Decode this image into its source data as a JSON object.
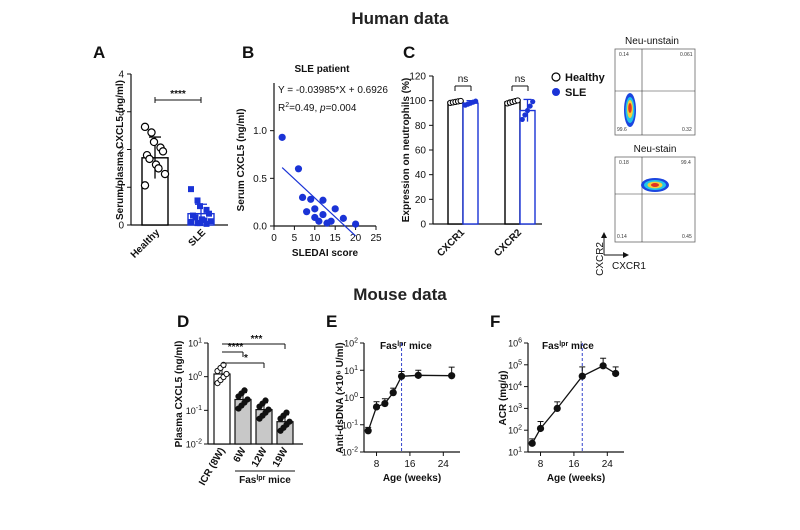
{
  "figure": {
    "human_title": "Human data",
    "mouse_title": "Mouse data"
  },
  "colors": {
    "healthy": "#000000",
    "sle": "#1a33d6",
    "fit": "#1a33d6",
    "dashed": "#3344cc"
  },
  "chart_data": [
    {
      "panel": "A",
      "type": "bar",
      "ylabel": "Serum/plasma CXCL5 (ng/ml)",
      "categories": [
        "Healthy",
        "SLE"
      ],
      "values": [
        1.78,
        0.3
      ],
      "errors": [
        0.55,
        0.25
      ],
      "ylim": [
        0,
        4
      ],
      "yticks": [
        "0",
        "1",
        "2",
        "3",
        "4"
      ],
      "points": [
        [
          2.6,
          2.45,
          2.2,
          2.05,
          1.95,
          1.85,
          1.75,
          1.6,
          1.5,
          1.35,
          1.05
        ],
        [
          0.95,
          0.65,
          0.5,
          0.4,
          0.3,
          0.25,
          0.2,
          0.15,
          0.12,
          0.1,
          0.08,
          0.05,
          0.05,
          0.03
        ]
      ],
      "significance": "****"
    },
    {
      "panel": "B",
      "type": "scatter",
      "title": "SLE patient",
      "equation": "Y = -0.03985*X + 0.6926",
      "stats_r2": "R",
      "stats_sup": "2",
      "stats_rest": "=0.49, ",
      "stats_p": "p",
      "stats_pval": "=0.004",
      "xlabel": "SLEDAI score",
      "ylabel": "Serum CXCL5 (ng/ml)",
      "xlim": [
        0,
        25
      ],
      "ylim": [
        0,
        1.5
      ],
      "xticks": [
        "0",
        "5",
        "10",
        "15",
        "20",
        "25"
      ],
      "yticks": [
        "0.0",
        "0.5",
        "1.0"
      ],
      "x": [
        2,
        6,
        7,
        8,
        9,
        10,
        10,
        11,
        12,
        12,
        13,
        14,
        15,
        17,
        20
      ],
      "y": [
        0.93,
        0.6,
        0.3,
        0.15,
        0.28,
        0.09,
        0.18,
        0.05,
        0.12,
        0.27,
        0.03,
        0.05,
        0.18,
        0.08,
        0.02
      ],
      "fit": {
        "slope": -0.03985,
        "intercept": 0.6926,
        "x_range": [
          2,
          20
        ]
      }
    },
    {
      "panel": "C",
      "type": "bar",
      "ylabel": "Expression on neutrophils (%)",
      "categories": [
        "CXCR1",
        "CXCR2"
      ],
      "series": [
        {
          "name": "Healthy",
          "values": [
            99,
            99
          ],
          "errors": [
            1,
            1.5
          ]
        },
        {
          "name": "SLE",
          "values": [
            98,
            92
          ],
          "errors": [
            2,
            9
          ]
        }
      ],
      "ylim": [
        0,
        120
      ],
      "yticks": [
        "0",
        "20",
        "40",
        "60",
        "80",
        "100",
        "120"
      ],
      "significance": [
        "ns",
        "ns"
      ],
      "legend_position": "top-right"
    },
    {
      "panel": "D",
      "type": "bar",
      "ylabel": "Plasma CXCL5 (ng/ml)",
      "categories": [
        "ICR (8W)",
        "6W",
        "12W",
        "19W"
      ],
      "group_label": "Fas",
      "group_label_sup": "lpr",
      "group_label_rest": " mice",
      "values": [
        1.2,
        0.21,
        0.105,
        0.046
      ],
      "yscale": "log",
      "ylim": [
        0.01,
        10
      ],
      "ytick_base": "10",
      "ytick_exps": [
        "1",
        "0",
        "-1",
        "-2"
      ],
      "significance": [
        "****",
        "*",
        "***"
      ]
    },
    {
      "panel": "E",
      "type": "line",
      "title": "Fas",
      "title_sup": "lpr",
      "title_rest": " mice",
      "xlabel": "Age (weeks)",
      "ylabel": "Anti-dsDNA (×10⁶ U/ml)",
      "x": [
        6,
        8,
        10,
        12,
        14,
        18,
        26
      ],
      "y": [
        0.06,
        0.45,
        0.6,
        1.5,
        6.0,
        6.5,
        6.3
      ],
      "yerr_high": [
        0.08,
        0.7,
        0.9,
        2.2,
        9.0,
        10.0,
        13.0
      ],
      "yscale": "log",
      "ylim": [
        0.01,
        100
      ],
      "xlim": [
        5,
        28
      ],
      "xticks": [
        "8",
        "16",
        "24"
      ],
      "ytick_base": "10",
      "ytick_exps": [
        "2",
        "1",
        "0",
        "-1",
        "-2"
      ],
      "dashed_x": 14
    },
    {
      "panel": "F",
      "type": "line",
      "title": "Fas",
      "title_sup": "lpr",
      "title_rest": " mice",
      "xlabel": "Age (weeks)",
      "ylabel": "ACR (mg/g)",
      "x": [
        6,
        8,
        12,
        18,
        23,
        26
      ],
      "y": [
        25,
        120,
        1000,
        30000,
        90000,
        40000
      ],
      "yerr_high": [
        40,
        250,
        2000,
        80000,
        200000,
        80000
      ],
      "yscale": "log",
      "ylim": [
        10,
        1000000
      ],
      "xlim": [
        5,
        28
      ],
      "xticks": [
        "8",
        "16",
        "24"
      ],
      "ytick_base": "10",
      "ytick_exps": [
        "6",
        "5",
        "4",
        "3",
        "2",
        "1"
      ],
      "dashed_x": 18
    }
  ],
  "flow": {
    "top_label": "Neu-unstain",
    "bottom_label": "Neu-stain",
    "y_axis": "CXCR2",
    "x_axis": "CXCR1",
    "top_quadrants": [
      "0.14",
      "0.061",
      "99.6",
      "0.32"
    ],
    "bottom_quadrants": [
      "0.18",
      "99.4",
      "0.14",
      "0.45"
    ]
  }
}
